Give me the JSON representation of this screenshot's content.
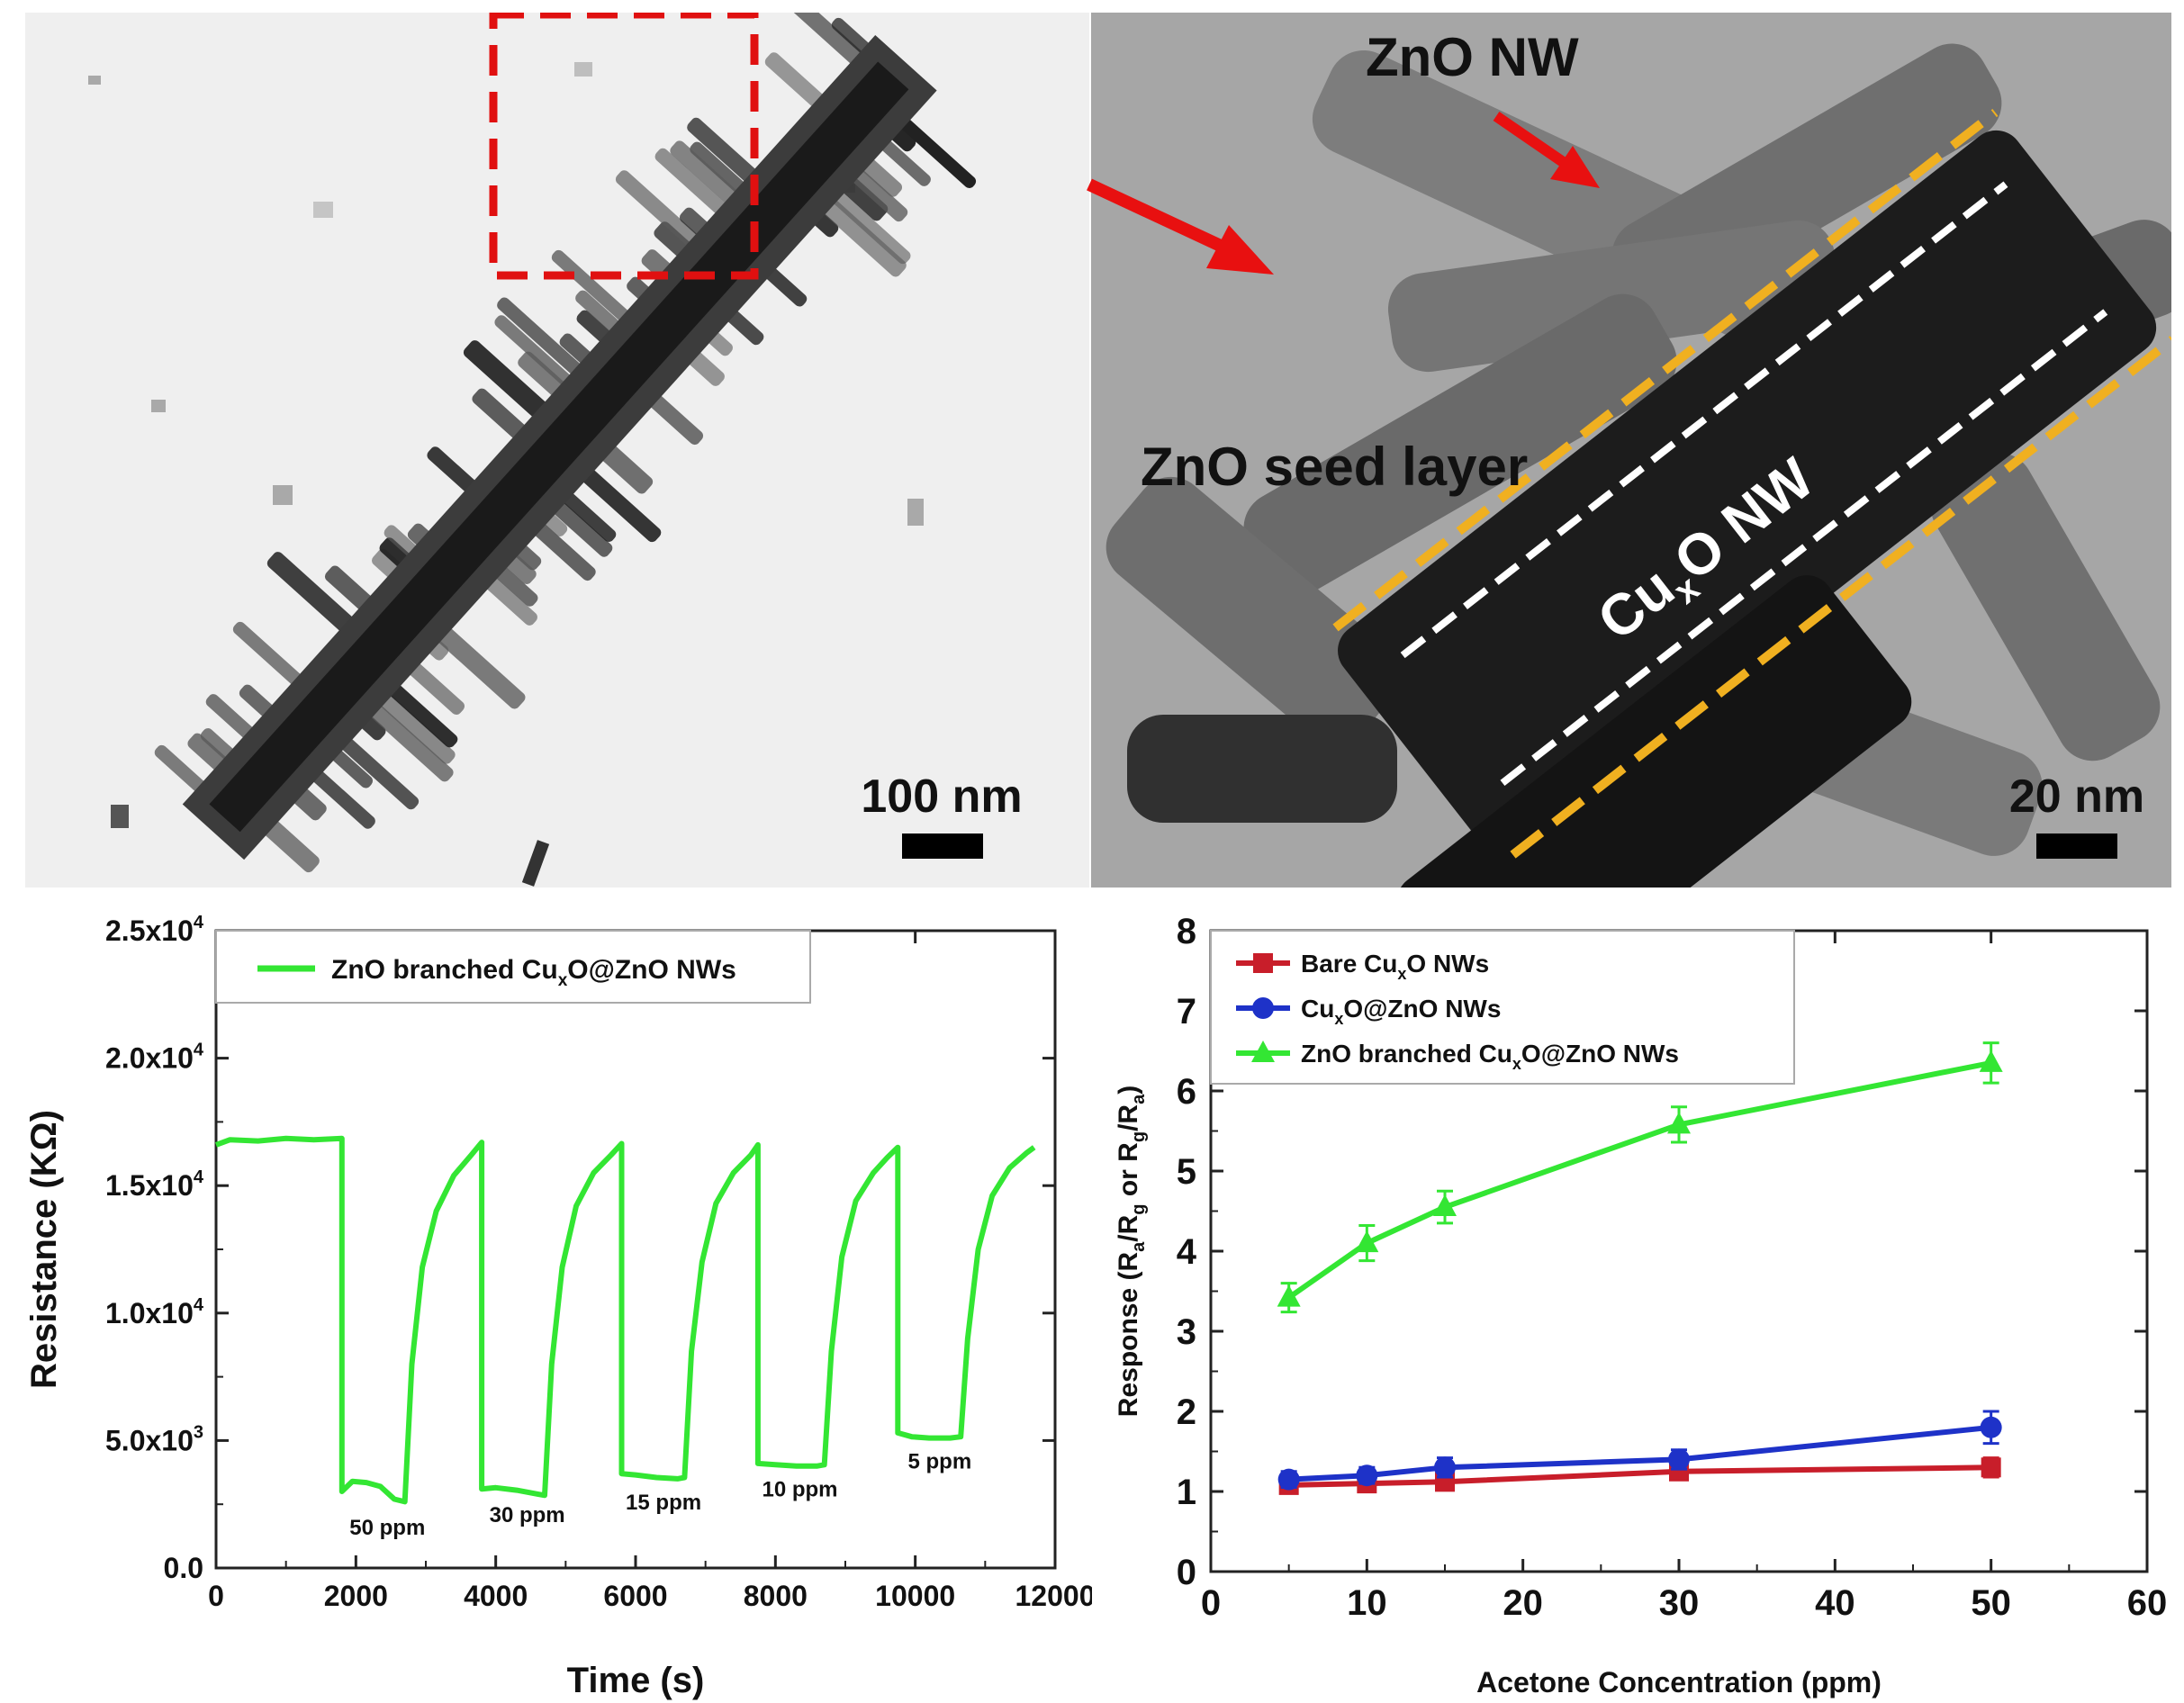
{
  "tem_left": {
    "scale_bar_label": "100 nm",
    "description": "TEM micrograph of ZnO branched CuxO@ZnO nanowire"
  },
  "tem_right": {
    "scale_bar_label": "20 nm",
    "label_zno_nw": "ZnO NW",
    "label_seed_layer": "ZnO seed layer",
    "label_cuxo_main": "Cu",
    "label_cuxo_sub": "x",
    "label_cuxo_tail": "O NW"
  },
  "chart_data": [
    {
      "type": "line",
      "title": "",
      "xlabel": "Time (s)",
      "ylabel": "Resistance (KΩ)",
      "xlim": [
        0,
        12000
      ],
      "ylim": [
        0,
        25000
      ],
      "x_ticks": [
        "0",
        "2000",
        "4000",
        "6000",
        "8000",
        "10000",
        "12000"
      ],
      "y_ticks": [
        {
          "mant": "0.0",
          "exp": ""
        },
        {
          "mant": "5.0x10",
          "exp": "3"
        },
        {
          "mant": "1.0x10",
          "exp": "4"
        },
        {
          "mant": "1.5x10",
          "exp": "4"
        },
        {
          "mant": "2.0x10",
          "exp": "4"
        },
        {
          "mant": "2.5x10",
          "exp": "4"
        }
      ],
      "legend": {
        "placement": "top-left",
        "text_a": "ZnO branched Cu",
        "text_sub": "x",
        "text_b": "O@ZnO NWs"
      },
      "color": "#33e633",
      "series": [
        {
          "name": "ZnO branched CuxO@ZnO NWs",
          "points": [
            [
              0,
              16600
            ],
            [
              200,
              16800
            ],
            [
              600,
              16750
            ],
            [
              1000,
              16850
            ],
            [
              1400,
              16800
            ],
            [
              1800,
              16850
            ],
            [
              1800,
              3000
            ],
            [
              1950,
              3400
            ],
            [
              2150,
              3350
            ],
            [
              2350,
              3200
            ],
            [
              2550,
              2700
            ],
            [
              2700,
              2600
            ],
            [
              2800,
              8000
            ],
            [
              2950,
              11800
            ],
            [
              3150,
              14000
            ],
            [
              3400,
              15400
            ],
            [
              3650,
              16200
            ],
            [
              3800,
              16700
            ],
            [
              3800,
              3100
            ],
            [
              4000,
              3150
            ],
            [
              4300,
              3050
            ],
            [
              4600,
              2900
            ],
            [
              4700,
              2850
            ],
            [
              4800,
              8000
            ],
            [
              4950,
              11800
            ],
            [
              5150,
              14200
            ],
            [
              5400,
              15500
            ],
            [
              5650,
              16200
            ],
            [
              5800,
              16650
            ],
            [
              5800,
              3700
            ],
            [
              6000,
              3650
            ],
            [
              6300,
              3550
            ],
            [
              6600,
              3500
            ],
            [
              6700,
              3550
            ],
            [
              6800,
              8500
            ],
            [
              6950,
              12000
            ],
            [
              7150,
              14300
            ],
            [
              7400,
              15500
            ],
            [
              7650,
              16200
            ],
            [
              7750,
              16600
            ],
            [
              7750,
              4100
            ],
            [
              8000,
              4050
            ],
            [
              8300,
              4000
            ],
            [
              8600,
              4000
            ],
            [
              8700,
              4050
            ],
            [
              8800,
              8500
            ],
            [
              8950,
              12200
            ],
            [
              9150,
              14400
            ],
            [
              9400,
              15500
            ],
            [
              9600,
              16100
            ],
            [
              9750,
              16500
            ],
            [
              9750,
              5300
            ],
            [
              9950,
              5150
            ],
            [
              10200,
              5100
            ],
            [
              10500,
              5100
            ],
            [
              10650,
              5150
            ],
            [
              10750,
              9000
            ],
            [
              10900,
              12500
            ],
            [
              11100,
              14600
            ],
            [
              11350,
              15700
            ],
            [
              11600,
              16300
            ],
            [
              11700,
              16500
            ]
          ]
        }
      ],
      "annotations": [
        {
          "text": "50 ppm",
          "x": 2450,
          "y": 1300
        },
        {
          "text": "30 ppm",
          "x": 4450,
          "y": 1800
        },
        {
          "text": "15 ppm",
          "x": 6400,
          "y": 2300
        },
        {
          "text": "10 ppm",
          "x": 8350,
          "y": 2800
        },
        {
          "text": "5 ppm",
          "x": 10350,
          "y": 3900
        }
      ]
    },
    {
      "type": "line",
      "title": "",
      "xlabel": "Acetone Concentration (ppm)",
      "ylabel_parts": [
        "Response (R",
        "a",
        "/R",
        "g",
        " or R",
        "g",
        "/R",
        "a",
        ")"
      ],
      "xlim": [
        0,
        60
      ],
      "ylim": [
        0,
        8
      ],
      "x_ticks": [
        "0",
        "10",
        "20",
        "30",
        "40",
        "50",
        "60"
      ],
      "y_ticks": [
        "0",
        "1",
        "2",
        "3",
        "4",
        "5",
        "6",
        "7",
        "8"
      ],
      "legend": {
        "placement": "top-left"
      },
      "series": [
        {
          "name": "Bare CuxO NWs",
          "label_a": "Bare Cu",
          "label_sub": "x",
          "label_b": "O NWs",
          "color": "#c81e2a",
          "marker": "square",
          "x": [
            5,
            10,
            15,
            30,
            50
          ],
          "y": [
            1.08,
            1.1,
            1.12,
            1.25,
            1.3
          ],
          "err": [
            0.08,
            0.08,
            0.1,
            0.1,
            0.12
          ]
        },
        {
          "name": "CuxO@ZnO NWs",
          "label_a": "Cu",
          "label_sub": "x",
          "label_b": "O@ZnO NWs",
          "color": "#1e32c8",
          "marker": "circle",
          "x": [
            5,
            10,
            15,
            30,
            50
          ],
          "y": [
            1.15,
            1.2,
            1.3,
            1.4,
            1.8
          ],
          "err": [
            0.1,
            0.1,
            0.12,
            0.12,
            0.2
          ]
        },
        {
          "name": "ZnO branched CuxO@ZnO NWs",
          "label_a": "ZnO branched Cu",
          "label_sub": "x",
          "label_b": "O@ZnO NWs",
          "color": "#33e633",
          "marker": "triangle",
          "x": [
            5,
            10,
            15,
            30,
            50
          ],
          "y": [
            3.42,
            4.1,
            4.55,
            5.58,
            6.35
          ],
          "err": [
            0.18,
            0.22,
            0.2,
            0.22,
            0.25
          ]
        }
      ]
    }
  ]
}
